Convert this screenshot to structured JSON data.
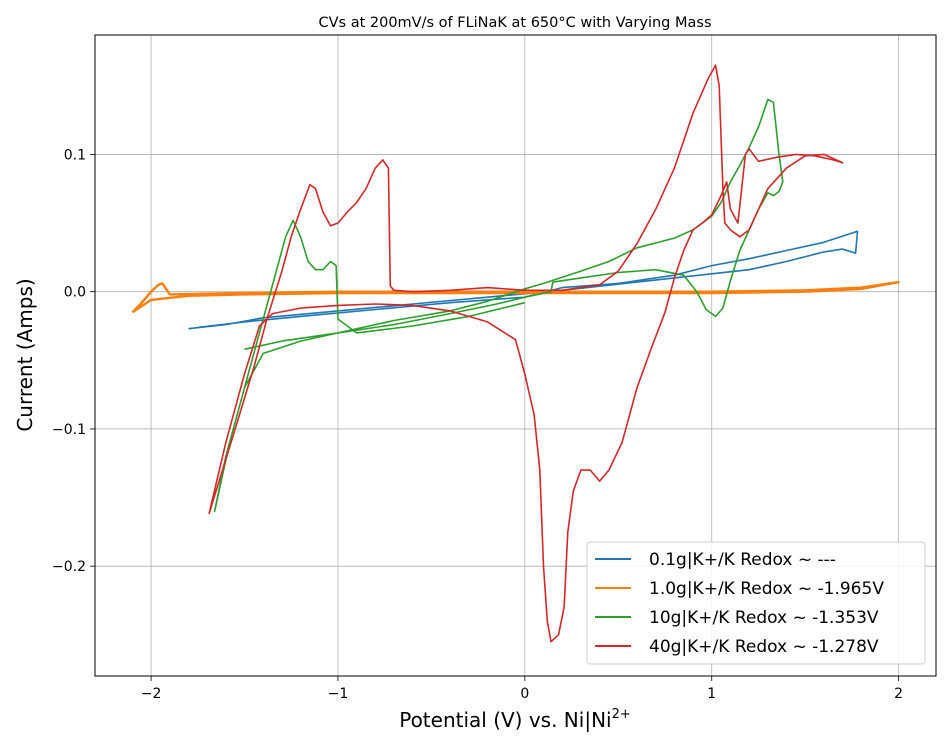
{
  "chart_data": {
    "type": "line",
    "title": "CVs at 200mV/s of FLiNaK at 650°C with Varying Mass",
    "xlabel": "Potential (V) vs. Ni|Ni",
    "xlabel_sup": "2+",
    "ylabel": "Current (Amps)",
    "xlim": [
      -2.3,
      2.2
    ],
    "ylim": [
      -0.28,
      0.187
    ],
    "x_ticks": [
      -2,
      -1,
      0,
      1,
      2
    ],
    "x_tick_labels": [
      "−2",
      "−1",
      "0",
      "1",
      "2"
    ],
    "y_ticks": [
      -0.2,
      -0.1,
      0.0,
      0.1
    ],
    "y_tick_labels": [
      "−0.2",
      "−0.1",
      "0.0",
      "0.1"
    ],
    "grid": true,
    "legend_position": "bottom-right",
    "series": [
      {
        "name": "0.1g|K+/K Redox ~ ---",
        "color": "#1f77b4",
        "points": [
          [
            -1.8,
            -0.027
          ],
          [
            -1.6,
            -0.024
          ],
          [
            -1.4,
            -0.019
          ],
          [
            -1.0,
            -0.014
          ],
          [
            -0.6,
            -0.009
          ],
          [
            -0.2,
            -0.004
          ],
          [
            0.2,
            0.001
          ],
          [
            0.6,
            0.007
          ],
          [
            1.0,
            0.013
          ],
          [
            1.2,
            0.016
          ],
          [
            1.4,
            0.022
          ],
          [
            1.6,
            0.029
          ],
          [
            1.7,
            0.031
          ],
          [
            1.77,
            0.028
          ],
          [
            1.78,
            0.044
          ],
          [
            1.6,
            0.036
          ],
          [
            1.4,
            0.03
          ],
          [
            1.2,
            0.024
          ],
          [
            1.0,
            0.019
          ],
          [
            0.8,
            0.012
          ],
          [
            0.5,
            0.006
          ],
          [
            0.2,
            0.003
          ],
          [
            0.0,
            -0.004
          ],
          [
            -0.4,
            -0.008
          ],
          [
            -0.8,
            -0.013
          ],
          [
            -1.2,
            -0.018
          ],
          [
            -1.5,
            -0.022
          ],
          [
            -1.75,
            -0.026
          ]
        ]
      },
      {
        "name": "1.0g|K+/K Redox ~ -1.965V",
        "color": "#ff7f0e",
        "points": [
          [
            -2.1,
            -0.015
          ],
          [
            -2.05,
            -0.008
          ],
          [
            -2.0,
            0.0
          ],
          [
            -1.96,
            0.005
          ],
          [
            -1.94,
            0.006
          ],
          [
            -1.9,
            -0.002
          ],
          [
            -1.5,
            -0.001
          ],
          [
            -1.0,
            0.0
          ],
          [
            -0.5,
            0.0
          ],
          [
            0.0,
            0.0
          ],
          [
            0.5,
            0.0
          ],
          [
            1.0,
            0.0
          ],
          [
            1.5,
            0.001
          ],
          [
            1.8,
            0.003
          ],
          [
            2.0,
            0.007
          ],
          [
            1.8,
            0.002
          ],
          [
            1.5,
            0.0
          ],
          [
            1.0,
            -0.001
          ],
          [
            0.5,
            -0.001
          ],
          [
            0.0,
            -0.001
          ],
          [
            -0.5,
            -0.001
          ],
          [
            -1.0,
            -0.001
          ],
          [
            -1.5,
            -0.002
          ],
          [
            -1.8,
            -0.003
          ],
          [
            -2.0,
            -0.006
          ],
          [
            -2.1,
            -0.015
          ]
        ]
      },
      {
        "name": "10g|K+/K Redox ~ -1.353V",
        "color": "#2ca02c",
        "points": [
          [
            -1.5,
            -0.042
          ],
          [
            -1.3,
            -0.036
          ],
          [
            -1.0,
            -0.03
          ],
          [
            -0.7,
            -0.024
          ],
          [
            -0.4,
            -0.016
          ],
          [
            -0.15,
            -0.009
          ],
          [
            0.0,
            -0.004
          ],
          [
            0.14,
            0.0
          ],
          [
            0.15,
            0.007
          ],
          [
            0.3,
            0.01
          ],
          [
            0.5,
            0.014
          ],
          [
            0.7,
            0.016
          ],
          [
            0.85,
            0.012
          ],
          [
            0.92,
            0.0
          ],
          [
            0.97,
            -0.013
          ],
          [
            1.02,
            -0.018
          ],
          [
            1.06,
            -0.012
          ],
          [
            1.1,
            0.008
          ],
          [
            1.15,
            0.03
          ],
          [
            1.25,
            0.06
          ],
          [
            1.3,
            0.072
          ],
          [
            1.33,
            0.07
          ],
          [
            1.36,
            0.073
          ],
          [
            1.38,
            0.08
          ],
          [
            1.36,
            0.1
          ],
          [
            1.33,
            0.138
          ],
          [
            1.3,
            0.14
          ],
          [
            1.25,
            0.12
          ],
          [
            1.2,
            0.105
          ],
          [
            1.15,
            0.092
          ],
          [
            1.1,
            0.08
          ],
          [
            1.05,
            0.065
          ],
          [
            1.0,
            0.055
          ],
          [
            0.9,
            0.045
          ],
          [
            0.8,
            0.039
          ],
          [
            0.6,
            0.032
          ],
          [
            0.45,
            0.022
          ],
          [
            0.3,
            0.015
          ],
          [
            0.1,
            0.006
          ],
          [
            0.0,
            0.002
          ],
          [
            -0.2,
            -0.007
          ],
          [
            -0.4,
            -0.014
          ],
          [
            -0.7,
            -0.021
          ],
          [
            -1.0,
            -0.03
          ],
          [
            -1.2,
            -0.036
          ],
          [
            -1.4,
            -0.045
          ],
          [
            -1.5,
            -0.07
          ],
          [
            -1.58,
            -0.11
          ],
          [
            -1.66,
            -0.16
          ],
          [
            -1.6,
            -0.12
          ],
          [
            -1.5,
            -0.07
          ],
          [
            -1.4,
            -0.02
          ],
          [
            -1.33,
            0.015
          ],
          [
            -1.28,
            0.04
          ],
          [
            -1.24,
            0.052
          ],
          [
            -1.2,
            0.04
          ],
          [
            -1.16,
            0.022
          ],
          [
            -1.12,
            0.016
          ],
          [
            -1.08,
            0.016
          ],
          [
            -1.04,
            0.022
          ],
          [
            -1.01,
            0.019
          ],
          [
            -1.0,
            -0.02
          ],
          [
            -0.9,
            -0.03
          ],
          [
            -0.6,
            -0.025
          ],
          [
            -0.3,
            -0.018
          ],
          [
            0.0,
            -0.008
          ]
        ]
      },
      {
        "name": "40g|K+/K Redox ~ -1.278V",
        "color": "#d62728",
        "points": [
          [
            -1.69,
            -0.162
          ],
          [
            -1.6,
            -0.11
          ],
          [
            -1.5,
            -0.06
          ],
          [
            -1.42,
            -0.025
          ],
          [
            -1.35,
            -0.016
          ],
          [
            -1.2,
            -0.012
          ],
          [
            -1.0,
            -0.01
          ],
          [
            -0.8,
            -0.009
          ],
          [
            -0.6,
            -0.01
          ],
          [
            -0.4,
            -0.014
          ],
          [
            -0.2,
            -0.022
          ],
          [
            -0.05,
            -0.035
          ],
          [
            0.0,
            -0.06
          ],
          [
            0.05,
            -0.09
          ],
          [
            0.08,
            -0.13
          ],
          [
            0.1,
            -0.2
          ],
          [
            0.12,
            -0.24
          ],
          [
            0.14,
            -0.255
          ],
          [
            0.18,
            -0.25
          ],
          [
            0.21,
            -0.23
          ],
          [
            0.23,
            -0.175
          ],
          [
            0.26,
            -0.145
          ],
          [
            0.3,
            -0.13
          ],
          [
            0.35,
            -0.13
          ],
          [
            0.4,
            -0.138
          ],
          [
            0.45,
            -0.13
          ],
          [
            0.52,
            -0.11
          ],
          [
            0.6,
            -0.07
          ],
          [
            0.68,
            -0.04
          ],
          [
            0.75,
            -0.015
          ],
          [
            0.8,
            0.01
          ],
          [
            0.85,
            0.03
          ],
          [
            0.9,
            0.045
          ],
          [
            0.95,
            0.05
          ],
          [
            1.0,
            0.056
          ],
          [
            1.05,
            0.07
          ],
          [
            1.08,
            0.08
          ],
          [
            1.1,
            0.06
          ],
          [
            1.14,
            0.05
          ],
          [
            1.18,
            0.1
          ],
          [
            1.2,
            0.104
          ],
          [
            1.25,
            0.095
          ],
          [
            1.35,
            0.098
          ],
          [
            1.45,
            0.1
          ],
          [
            1.55,
            0.099
          ],
          [
            1.65,
            0.096
          ],
          [
            1.7,
            0.094
          ],
          [
            1.6,
            0.1
          ],
          [
            1.5,
            0.099
          ],
          [
            1.4,
            0.09
          ],
          [
            1.3,
            0.075
          ],
          [
            1.2,
            0.045
          ],
          [
            1.15,
            0.04
          ],
          [
            1.1,
            0.045
          ],
          [
            1.07,
            0.05
          ],
          [
            1.06,
            0.075
          ],
          [
            1.04,
            0.15
          ],
          [
            1.02,
            0.165
          ],
          [
            0.98,
            0.155
          ],
          [
            0.9,
            0.13
          ],
          [
            0.8,
            0.09
          ],
          [
            0.7,
            0.06
          ],
          [
            0.6,
            0.035
          ],
          [
            0.5,
            0.015
          ],
          [
            0.4,
            0.005
          ],
          [
            0.2,
            0.001
          ],
          [
            0.0,
            0.001
          ],
          [
            -0.2,
            0.003
          ],
          [
            -0.4,
            0.001
          ],
          [
            -0.6,
            0.0
          ],
          [
            -0.7,
            0.001
          ],
          [
            -0.72,
            0.004
          ],
          [
            -0.73,
            0.09
          ],
          [
            -0.76,
            0.096
          ],
          [
            -0.8,
            0.09
          ],
          [
            -0.85,
            0.075
          ],
          [
            -0.9,
            0.065
          ],
          [
            -0.95,
            0.058
          ],
          [
            -1.0,
            0.05
          ],
          [
            -1.04,
            0.048
          ],
          [
            -1.08,
            0.058
          ],
          [
            -1.12,
            0.075
          ],
          [
            -1.15,
            0.078
          ],
          [
            -1.2,
            0.06
          ],
          [
            -1.25,
            0.04
          ],
          [
            -1.3,
            0.015
          ],
          [
            -1.38,
            -0.02
          ],
          [
            -1.45,
            -0.055
          ],
          [
            -1.55,
            -0.1
          ],
          [
            -1.69,
            -0.162
          ]
        ]
      }
    ]
  }
}
